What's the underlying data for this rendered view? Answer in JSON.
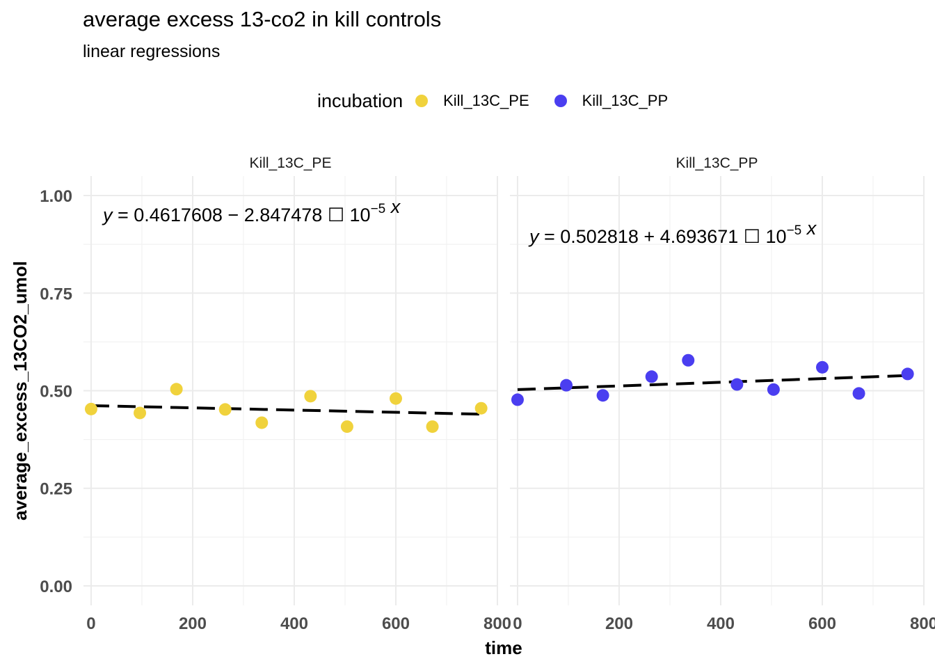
{
  "title": "average excess 13-co2 in kill controls",
  "subtitle": "linear regressions",
  "legend": {
    "title": "incubation",
    "items": [
      {
        "label": "Kill_13C_PE",
        "color": "#f0d23c"
      },
      {
        "label": "Kill_13C_PP",
        "color": "#4a3ef0"
      }
    ]
  },
  "chart_data": {
    "type": "scatter",
    "xlabel": "time",
    "ylabel": "average_excess_13CO2_umol",
    "xlim": [
      -15,
      800
    ],
    "ylim": [
      -0.05,
      1.05
    ],
    "x_ticks": [
      0,
      200,
      400,
      600,
      800
    ],
    "y_ticks": [
      0.0,
      0.25,
      0.5,
      0.75,
      1.0
    ],
    "y_tick_labels": [
      "0.00",
      "0.25",
      "0.50",
      "0.75",
      "1.00"
    ],
    "grid": true,
    "legend_position": "top",
    "regression_line_style": "dashed",
    "panels": [
      {
        "strip": "Kill_13C_PE",
        "series_color": "#f0d23c",
        "x": [
          0,
          96,
          168,
          264,
          336,
          432,
          504,
          600,
          672,
          768
        ],
        "y": [
          0.453,
          0.443,
          0.504,
          0.452,
          0.418,
          0.486,
          0.408,
          0.48,
          0.408,
          0.455
        ],
        "regression": {
          "intercept": 0.4617608,
          "slope": -2.847478e-05
        },
        "equation": {
          "lhs": "y",
          "eq": " = 0.4617608",
          "op": " − ",
          "coef": "2.847478",
          "times": " ☐ ",
          "base": "10",
          "exp": "−5",
          "var": " x"
        }
      },
      {
        "strip": "Kill_13C_PP",
        "series_color": "#4a3ef0",
        "x": [
          0,
          96,
          168,
          264,
          336,
          432,
          504,
          600,
          672,
          768
        ],
        "y": [
          0.477,
          0.514,
          0.488,
          0.536,
          0.578,
          0.516,
          0.503,
          0.56,
          0.493,
          0.543
        ],
        "regression": {
          "intercept": 0.502818,
          "slope": 4.693671e-05
        },
        "equation": {
          "lhs": "y",
          "eq": " = 0.502818",
          "op": " + ",
          "coef": "4.693671",
          "times": " ☐ ",
          "base": "10",
          "exp": "−5",
          "var": " x"
        }
      }
    ]
  }
}
